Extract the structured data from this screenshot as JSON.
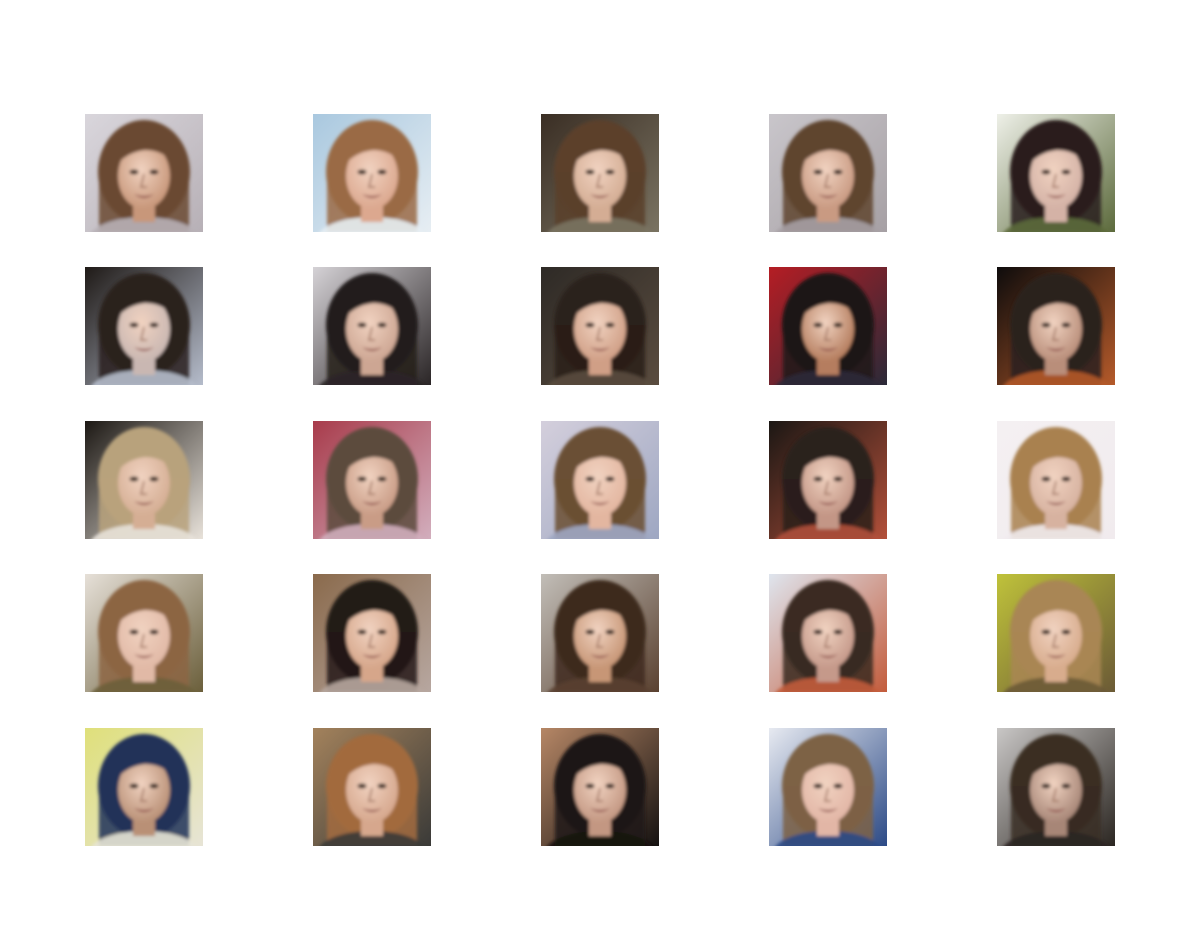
{
  "figure": {
    "grid": {
      "rows": 5,
      "cols": 5
    },
    "images": [
      {
        "row": 0,
        "col": 0,
        "subject": "generated-face",
        "palette": {
          "bg": "#d9d6dc",
          "bg2": "#b7b0b6",
          "hair": "#6b4a32",
          "skin": "#c8977a"
        }
      },
      {
        "row": 0,
        "col": 1,
        "subject": "generated-face",
        "palette": {
          "bg": "#a9c8df",
          "bg2": "#e7eef3",
          "hair": "#9a6a44",
          "skin": "#dca88f"
        }
      },
      {
        "row": 0,
        "col": 2,
        "subject": "generated-face",
        "palette": {
          "bg": "#3a2e24",
          "bg2": "#7a7362",
          "hair": "#5b3f2b",
          "skin": "#d4ad94"
        }
      },
      {
        "row": 0,
        "col": 3,
        "subject": "generated-face",
        "palette": {
          "bg": "#c9c6cb",
          "bg2": "#a6a0a4",
          "hair": "#5f452f",
          "skin": "#c99a82"
        }
      },
      {
        "row": 0,
        "col": 4,
        "subject": "generated-face",
        "palette": {
          "bg": "#eef0e8",
          "bg2": "#5c6a3c",
          "hair": "#2a1f1c",
          "skin": "#d4b2a6"
        }
      },
      {
        "row": 1,
        "col": 0,
        "subject": "generated-face",
        "palette": {
          "bg": "#1f1a17",
          "bg2": "#b5bccb",
          "hair": "#2c221c",
          "skin": "#c9b7b2"
        }
      },
      {
        "row": 1,
        "col": 1,
        "subject": "generated-face",
        "palette": {
          "bg": "#d5d2d6",
          "bg2": "#2a2526",
          "hair": "#231c1b",
          "skin": "#cda693"
        }
      },
      {
        "row": 1,
        "col": 2,
        "subject": "generated-face",
        "palette": {
          "bg": "#2e2a26",
          "bg2": "#5a4c3f",
          "hair": "#2a201a",
          "skin": "#d09f86"
        }
      },
      {
        "row": 1,
        "col": 3,
        "subject": "generated-face",
        "palette": {
          "bg": "#b51d24",
          "bg2": "#2b2a38",
          "hair": "#1d1715",
          "skin": "#b57d5e"
        }
      },
      {
        "row": 1,
        "col": 4,
        "subject": "generated-face",
        "palette": {
          "bg": "#0e0c0c",
          "bg2": "#b55a2a",
          "hair": "#2a211d",
          "skin": "#b98e7a"
        }
      },
      {
        "row": 2,
        "col": 0,
        "subject": "generated-face",
        "palette": {
          "bg": "#1c1814",
          "bg2": "#e8e2da",
          "hair": "#b8a27c",
          "skin": "#d5ae94"
        }
      },
      {
        "row": 2,
        "col": 1,
        "subject": "generated-face",
        "palette": {
          "bg": "#a83b4b",
          "bg2": "#d2aebd",
          "hair": "#5c4b3c",
          "skin": "#c99c86"
        }
      },
      {
        "row": 2,
        "col": 2,
        "subject": "generated-face",
        "palette": {
          "bg": "#d4cfdc",
          "bg2": "#9ea7c2",
          "hair": "#6b4f34",
          "skin": "#e3b6a0"
        }
      },
      {
        "row": 2,
        "col": 3,
        "subject": "generated-face",
        "palette": {
          "bg": "#1b1714",
          "bg2": "#b3503a",
          "hair": "#2a201b",
          "skin": "#c39686"
        }
      },
      {
        "row": 2,
        "col": 4,
        "subject": "generated-face",
        "palette": {
          "bg": "#f4f0f2",
          "bg2": "#f1ebee",
          "hair": "#a9814f",
          "skin": "#d7b2a0"
        }
      },
      {
        "row": 3,
        "col": 0,
        "subject": "generated-face",
        "palette": {
          "bg": "#e6e0d8",
          "bg2": "#6b5f3b",
          "hair": "#8c6543",
          "skin": "#e1b9a6"
        }
      },
      {
        "row": 3,
        "col": 1,
        "subject": "generated-face",
        "palette": {
          "bg": "#8a6a4c",
          "bg2": "#b7a7a0",
          "hair": "#241a16",
          "skin": "#d6a68a"
        }
      },
      {
        "row": 3,
        "col": 2,
        "subject": "generated-face",
        "palette": {
          "bg": "#c2beb8",
          "bg2": "#5a4130",
          "hair": "#3e2b1f",
          "skin": "#c79676"
        }
      },
      {
        "row": 3,
        "col": 3,
        "subject": "generated-face",
        "palette": {
          "bg": "#dfe5ee",
          "bg2": "#c35c3c",
          "hair": "#3a2b22",
          "skin": "#c5998a"
        }
      },
      {
        "row": 3,
        "col": 4,
        "subject": "generated-face",
        "palette": {
          "bg": "#bfc23a",
          "bg2": "#6b5a36",
          "hair": "#a98654",
          "skin": "#d8ac8d"
        }
      },
      {
        "row": 4,
        "col": 0,
        "subject": "generated-face",
        "palette": {
          "bg": "#dfe07a",
          "bg2": "#e7e4d6",
          "hair": "#213259",
          "skin": "#b99076"
        }
      },
      {
        "row": 4,
        "col": 1,
        "subject": "generated-face",
        "palette": {
          "bg": "#a3825c",
          "bg2": "#3a3a38",
          "hair": "#a26b3e",
          "skin": "#d6a78d"
        }
      },
      {
        "row": 4,
        "col": 2,
        "subject": "generated-face",
        "palette": {
          "bg": "#b68766",
          "bg2": "#151211",
          "hair": "#1f1916",
          "skin": "#c39782"
        }
      },
      {
        "row": 4,
        "col": 3,
        "subject": "generated-face",
        "palette": {
          "bg": "#e7eaf1",
          "bg2": "#2c4a86",
          "hair": "#7d6244",
          "skin": "#e2b6a6"
        }
      },
      {
        "row": 4,
        "col": 4,
        "subject": "generated-face",
        "palette": {
          "bg": "#c9c7c6",
          "bg2": "#2b2621",
          "hair": "#3a2d24",
          "skin": "#a78677"
        }
      }
    ]
  }
}
